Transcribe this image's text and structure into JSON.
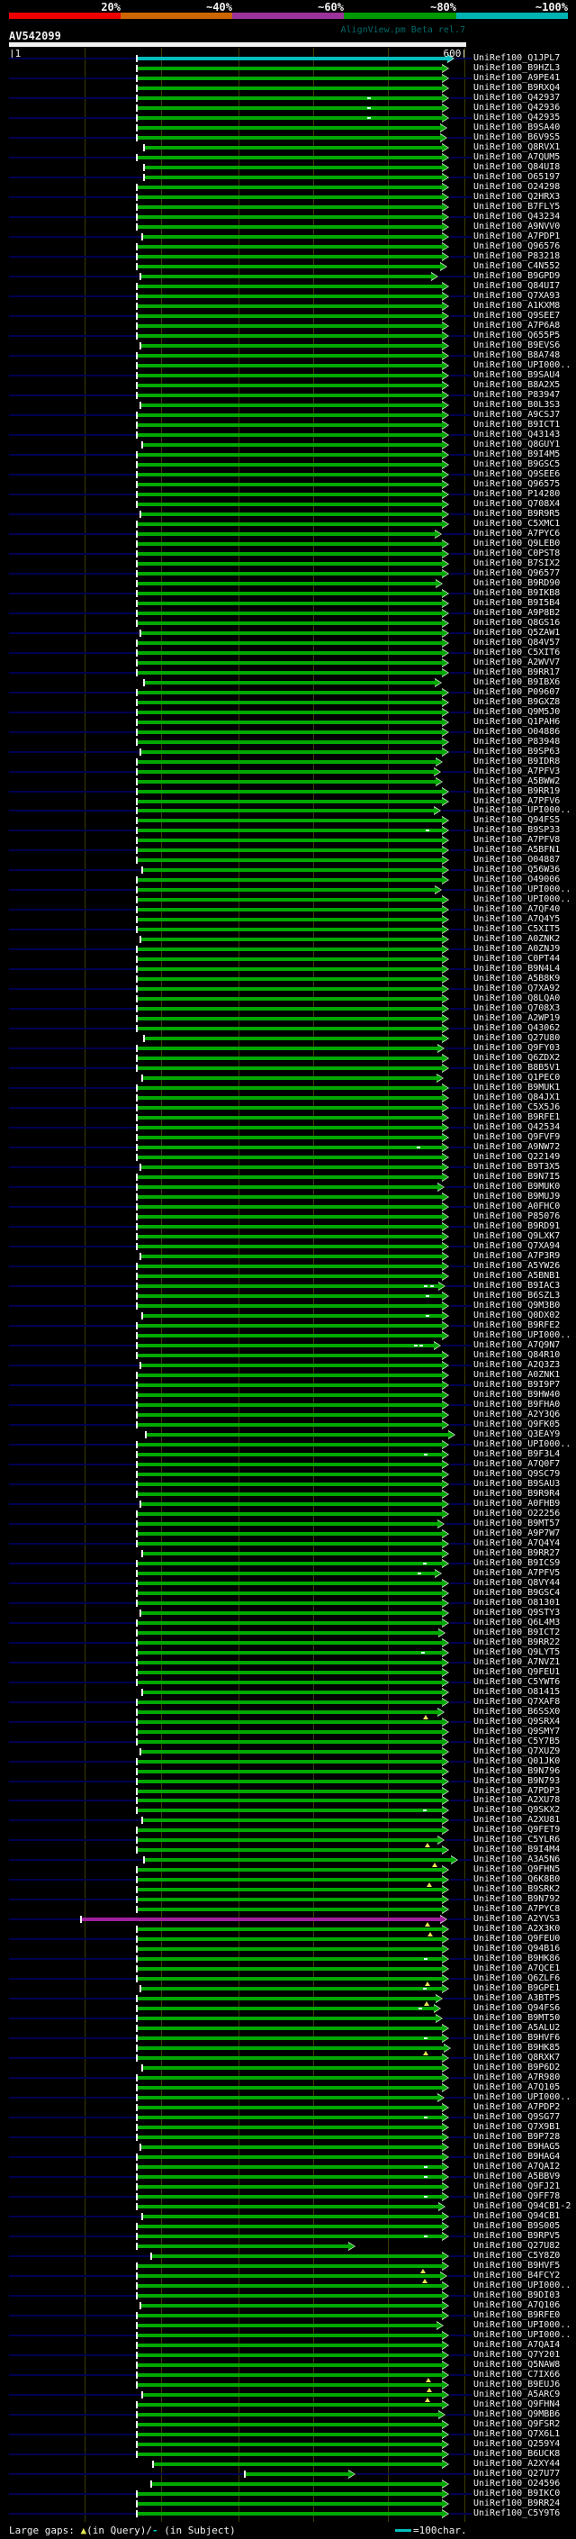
{
  "header": {
    "scale_labels": [
      "20%",
      "~40%",
      "~60%",
      "~80%",
      "~100%"
    ],
    "scale_colors": [
      "#ee0000",
      "#cc6600",
      "#993399",
      "#009900",
      "#00b3b3"
    ],
    "watermark": "AlignView.pm Beta rel.7",
    "query_name": "AV542099",
    "ruler_start_label": "|1",
    "ruler_end_label": "600|",
    "ruler_tick_x": [
      94,
      179,
      265,
      348,
      431,
      516
    ]
  },
  "footer": {
    "gaps_label": "Large gaps: ",
    "gap_query_symbol": "▲",
    "gap_query_text": "(in Query)/",
    "gap_subject_symbol": "- ",
    "gap_subject_text": "(in Subject)",
    "scale_legend": "=100char."
  },
  "colors": {
    "green": "#00a800",
    "cyan": "#00bcbc",
    "magenta": "#a020a0",
    "navy": "#000052",
    "grid": "#3c3c00",
    "gap_query": "#e6e655",
    "gap_subject": "#d8f4f4",
    "white": "#f2f2f2"
  },
  "defaults": {
    "color": "green",
    "start": 152,
    "end": 499
  },
  "rows": [
    {
      "label": "UniRef100_Q1JPL7",
      "color": "cyan",
      "end": 505
    },
    {
      "label": "UniRef100_B9HZL3"
    },
    {
      "label": "UniRef100_A9PE41"
    },
    {
      "label": "UniRef100_B9RXQ4"
    },
    {
      "label": "UniRef100_Q42937",
      "dash": [
        410
      ]
    },
    {
      "label": "UniRef100_Q42936",
      "dash": [
        410
      ]
    },
    {
      "label": "UniRef100_Q42935",
      "dash": [
        410
      ]
    },
    {
      "label": "UniRef100_B9SA40",
      "end": 497
    },
    {
      "label": "UniRef100_B6V9S5",
      "end": 497
    },
    {
      "label": "UniRef100_Q8RVX1",
      "start": 160
    },
    {
      "label": "UniRef100_A7QUM5"
    },
    {
      "label": "UniRef100_Q84UI8",
      "start": 160
    },
    {
      "label": "UniRef100_O65197",
      "start": 160
    },
    {
      "label": "UniRef100_O24298"
    },
    {
      "label": "UniRef100_Q2HRX3"
    },
    {
      "label": "UniRef100_B7FLY5"
    },
    {
      "label": "UniRef100_Q43234"
    },
    {
      "label": "UniRef100_A9NVV0"
    },
    {
      "label": "UniRef100_A7PDP1",
      "start": 158
    },
    {
      "label": "UniRef100_Q96576"
    },
    {
      "label": "UniRef100_P83218"
    },
    {
      "label": "UniRef100_C4N552",
      "end": 497
    },
    {
      "label": "UniRef100_B9GPD9",
      "start": 156,
      "end": 487
    },
    {
      "label": "UniRef100_Q84UI7"
    },
    {
      "label": "UniRef100_Q7XA93"
    },
    {
      "label": "UniRef100_A1KXM8"
    },
    {
      "label": "UniRef100_Q9SEE7"
    },
    {
      "label": "UniRef100_A7P6A8"
    },
    {
      "label": "UniRef100_Q655P5"
    },
    {
      "label": "UniRef100_B9EVS6",
      "start": 156
    },
    {
      "label": "UniRef100_B8A748"
    },
    {
      "label": "UniRef100_UPI000.."
    },
    {
      "label": "UniRef100_B9SAU4"
    },
    {
      "label": "UniRef100_B8A2X5"
    },
    {
      "label": "UniRef100_P83947"
    },
    {
      "label": "UniRef100_B0L3S3",
      "start": 156
    },
    {
      "label": "UniRef100_A9CSJ7"
    },
    {
      "label": "UniRef100_B9ICT1"
    },
    {
      "label": "UniRef100_Q43143"
    },
    {
      "label": "UniRef100_Q8GUY1",
      "start": 158
    },
    {
      "label": "UniRef100_B9I4M5"
    },
    {
      "label": "UniRef100_B9GSC5"
    },
    {
      "label": "UniRef100_Q9SEE6"
    },
    {
      "label": "UniRef100_Q96575"
    },
    {
      "label": "UniRef100_P14280"
    },
    {
      "label": "UniRef100_Q708X4"
    },
    {
      "label": "UniRef100_B9R9R5",
      "start": 156
    },
    {
      "label": "UniRef100_C5XMC1"
    },
    {
      "label": "UniRef100_A7PYC6",
      "end": 491
    },
    {
      "label": "UniRef100_Q9LEB0"
    },
    {
      "label": "UniRef100_C0PST8"
    },
    {
      "label": "UniRef100_B7SIX2"
    },
    {
      "label": "UniRef100_Q96577"
    },
    {
      "label": "UniRef100_B9RD90",
      "end": 492
    },
    {
      "label": "UniRef100_B9IKB8"
    },
    {
      "label": "UniRef100_B9I5B4"
    },
    {
      "label": "UniRef100_A9P8B2"
    },
    {
      "label": "UniRef100_Q8GS16"
    },
    {
      "label": "UniRef100_Q5ZAW1",
      "start": 156
    },
    {
      "label": "UniRef100_Q84V57"
    },
    {
      "label": "UniRef100_C5XIT6"
    },
    {
      "label": "UniRef100_A2WVV7"
    },
    {
      "label": "UniRef100_B9RR17"
    },
    {
      "label": "UniRef100_B9IBX6",
      "start": 160,
      "end": 491
    },
    {
      "label": "UniRef100_P09607"
    },
    {
      "label": "UniRef100_B9GXZ8"
    },
    {
      "label": "UniRef100_Q9M5J0"
    },
    {
      "label": "UniRef100_Q1PAH6"
    },
    {
      "label": "UniRef100_O04886"
    },
    {
      "label": "UniRef100_P83948"
    },
    {
      "label": "UniRef100_B9SP63",
      "start": 156
    },
    {
      "label": "UniRef100_B9IDR8",
      "end": 492
    },
    {
      "label": "UniRef100_A7PFV3",
      "end": 490
    },
    {
      "label": "UniRef100_A5BWW2",
      "end": 492
    },
    {
      "label": "UniRef100_B9RR19"
    },
    {
      "label": "UniRef100_A7PFV6"
    },
    {
      "label": "UniRef100_UPI000..",
      "end": 490
    },
    {
      "label": "UniRef100_Q94FS5"
    },
    {
      "label": "UniRef100_B9SP33",
      "dash": [
        475
      ]
    },
    {
      "label": "UniRef100_A7PFV8"
    },
    {
      "label": "UniRef100_A5BFN1"
    },
    {
      "label": "UniRef100_O04887"
    },
    {
      "label": "UniRef100_Q56W36",
      "start": 158
    },
    {
      "label": "UniRef100_O49006"
    },
    {
      "label": "UniRef100_UPI000..",
      "end": 491
    },
    {
      "label": "UniRef100_UPI000.."
    },
    {
      "label": "UniRef100_A7QF40"
    },
    {
      "label": "UniRef100_A7Q4Y5"
    },
    {
      "label": "UniRef100_C5XIT5"
    },
    {
      "label": "UniRef100_A0ZNK2",
      "start": 156
    },
    {
      "label": "UniRef100_A0ZNJ9"
    },
    {
      "label": "UniRef100_C0PT44"
    },
    {
      "label": "UniRef100_B9N4L4"
    },
    {
      "label": "UniRef100_A5B8K9"
    },
    {
      "label": "UniRef100_Q7XA92"
    },
    {
      "label": "UniRef100_Q8LQA0"
    },
    {
      "label": "UniRef100_Q708X3"
    },
    {
      "label": "UniRef100_A2WP19"
    },
    {
      "label": "UniRef100_Q43062"
    },
    {
      "label": "UniRef100_Q27U80",
      "start": 160
    },
    {
      "label": "UniRef100_Q9FY03",
      "end": 494
    },
    {
      "label": "UniRef100_Q6ZDX2"
    },
    {
      "label": "UniRef100_B8B5V1"
    },
    {
      "label": "UniRef100_Q1PEC0",
      "start": 158,
      "end": 493
    },
    {
      "label": "UniRef100_B9MUK1"
    },
    {
      "label": "UniRef100_Q84JX1"
    },
    {
      "label": "UniRef100_C5X5J6"
    },
    {
      "label": "UniRef100_B9RFE1"
    },
    {
      "label": "UniRef100_Q42534"
    },
    {
      "label": "UniRef100_Q9FVF9"
    },
    {
      "label": "UniRef100_A9NW72",
      "dash": [
        465
      ]
    },
    {
      "label": "UniRef100_Q22149"
    },
    {
      "label": "UniRef100_B9T3X5",
      "start": 156
    },
    {
      "label": "UniRef100_B9N7I5"
    },
    {
      "label": "UniRef100_B9MUK0",
      "end": 494
    },
    {
      "label": "UniRef100_B9MUJ9"
    },
    {
      "label": "UniRef100_A0FHC0"
    },
    {
      "label": "UniRef100_P85076"
    },
    {
      "label": "UniRef100_B9RD91"
    },
    {
      "label": "UniRef100_Q9LXK7"
    },
    {
      "label": "UniRef100_Q7XA94"
    },
    {
      "label": "UniRef100_A7P3R9",
      "start": 156
    },
    {
      "label": "UniRef100_A5YW26"
    },
    {
      "label": "UniRef100_A5BNB1"
    },
    {
      "label": "UniRef100_B9IAC3",
      "end": 495,
      "dash": [
        473,
        480
      ]
    },
    {
      "label": "UniRef100_B6SZL3",
      "dash": [
        475
      ]
    },
    {
      "label": "UniRef100_Q9M3B0"
    },
    {
      "label": "UniRef100_Q0DX02",
      "start": 158,
      "dash": [
        475
      ]
    },
    {
      "label": "UniRef100_B9RFE2"
    },
    {
      "label": "UniRef100_UPI000.."
    },
    {
      "label": "UniRef100_A7Q9N7",
      "end": 490,
      "dash": [
        462,
        468
      ]
    },
    {
      "label": "UniRef100_Q84R10"
    },
    {
      "label": "UniRef100_A2Q3Z3",
      "start": 156
    },
    {
      "label": "UniRef100_A0ZNK1"
    },
    {
      "label": "UniRef100_B9I9P7"
    },
    {
      "label": "UniRef100_B9HW40"
    },
    {
      "label": "UniRef100_B9FHA0"
    },
    {
      "label": "UniRef100_A2Y3Q6"
    },
    {
      "label": "UniRef100_Q9FK05"
    },
    {
      "label": "UniRef100_Q3EAY9",
      "start": 162,
      "end": 506
    },
    {
      "label": "UniRef100_UPI000.."
    },
    {
      "label": "UniRef100_B9F3L4",
      "dash": [
        473
      ]
    },
    {
      "label": "UniRef100_A7Q0F7"
    },
    {
      "label": "UniRef100_Q9SC79"
    },
    {
      "label": "UniRef100_B9SAU3"
    },
    {
      "label": "UniRef100_B9R9R4"
    },
    {
      "label": "UniRef100_A0FHB9",
      "start": 156
    },
    {
      "label": "UniRef100_O22256"
    },
    {
      "label": "UniRef100_B9MT57",
      "end": 494
    },
    {
      "label": "UniRef100_A9P7W7"
    },
    {
      "label": "UniRef100_A7Q4Y4"
    },
    {
      "label": "UniRef100_B9RR27",
      "start": 158
    },
    {
      "label": "UniRef100_B9ICS9",
      "dash": [
        472
      ]
    },
    {
      "label": "UniRef100_A7PFV5",
      "end": 491,
      "dash": [
        466
      ]
    },
    {
      "label": "UniRef100_Q8VY44"
    },
    {
      "label": "UniRef100_B9GSC4"
    },
    {
      "label": "UniRef100_O81301"
    },
    {
      "label": "UniRef100_Q9STY3",
      "start": 156
    },
    {
      "label": "UniRef100_Q6L4M3"
    },
    {
      "label": "UniRef100_B9ICT2",
      "end": 495
    },
    {
      "label": "UniRef100_B9RR22"
    },
    {
      "label": "UniRef100_Q9LYT5",
      "dash": [
        470
      ]
    },
    {
      "label": "UniRef100_A7NVZ1"
    },
    {
      "label": "UniRef100_Q9FEU1"
    },
    {
      "label": "UniRef100_C5YWT6"
    },
    {
      "label": "UniRef100_O81415",
      "start": 158
    },
    {
      "label": "UniRef100_Q7XAF8"
    },
    {
      "label": "UniRef100_B6SSX0",
      "end": 494,
      "tri": [
        473
      ]
    },
    {
      "label": "UniRef100_Q9SRX4"
    },
    {
      "label": "UniRef100_Q9SMY7"
    },
    {
      "label": "UniRef100_C5Y7B5"
    },
    {
      "label": "UniRef100_Q7XUZ9",
      "start": 156
    },
    {
      "label": "UniRef100_Q01JK0"
    },
    {
      "label": "UniRef100_B9N796"
    },
    {
      "label": "UniRef100_B9N793"
    },
    {
      "label": "UniRef100_A7PDP3"
    },
    {
      "label": "UniRef100_A2XU78"
    },
    {
      "label": "UniRef100_Q9SKX2",
      "dash": [
        472
      ]
    },
    {
      "label": "UniRef100_A2XU81",
      "start": 158
    },
    {
      "label": "UniRef100_Q9FET9"
    },
    {
      "label": "UniRef100_C5YLR6",
      "end": 494,
      "tri": [
        475
      ]
    },
    {
      "label": "UniRef100_B9I4M4"
    },
    {
      "label": "UniRef100_A3A5N6",
      "start": 160,
      "end": 509,
      "tri": [
        483
      ]
    },
    {
      "label": "UniRef100_Q9FHN5"
    },
    {
      "label": "UniRef100_Q6K8B0",
      "tri": [
        477
      ]
    },
    {
      "label": "UniRef100_B9SRK2"
    },
    {
      "label": "UniRef100_B9N792"
    },
    {
      "label": "UniRef100_A7PYC8"
    },
    {
      "label": "UniRef100_A2YVS3",
      "color": "magenta",
      "start": 90,
      "end": 497,
      "tri": [
        475
      ]
    },
    {
      "label": "UniRef100_A2X3K0",
      "tri": [
        478
      ]
    },
    {
      "label": "UniRef100_Q9FEU0"
    },
    {
      "label": "UniRef100_Q94B16"
    },
    {
      "label": "UniRef100_B9HK86",
      "dash": [
        473
      ]
    },
    {
      "label": "UniRef100_A7QCE1"
    },
    {
      "label": "UniRef100_Q6ZLF6",
      "tri": [
        475
      ]
    },
    {
      "label": "UniRef100_B9GPE1",
      "start": 156,
      "dash": [
        472
      ]
    },
    {
      "label": "UniRef100_A3BTP5",
      "end": 492,
      "tri": [
        474
      ]
    },
    {
      "label": "UniRef100_Q94FS6",
      "end": 490,
      "dash": [
        467
      ]
    },
    {
      "label": "UniRef100_B9MT50",
      "end": 492
    },
    {
      "label": "UniRef100_A5ALU2"
    },
    {
      "label": "UniRef100_B9HVF6",
      "dash": [
        473
      ]
    },
    {
      "label": "UniRef100_B9HK85",
      "end": 501,
      "tri": [
        473
      ]
    },
    {
      "label": "UniRef100_Q8RXK7"
    },
    {
      "label": "UniRef100_B9P6D2",
      "start": 158
    },
    {
      "label": "UniRef100_A7R980"
    },
    {
      "label": "UniRef100_A7Q105"
    },
    {
      "label": "UniRef100_UPI000..",
      "end": 494
    },
    {
      "label": "UniRef100_A7PDP2"
    },
    {
      "label": "UniRef100_Q9SG77",
      "dash": [
        473
      ]
    },
    {
      "label": "UniRef100_Q7X9B1"
    },
    {
      "label": "UniRef100_B9P728"
    },
    {
      "label": "UniRef100_B9HAG5",
      "start": 156
    },
    {
      "label": "UniRef100_B9HAG4"
    },
    {
      "label": "UniRef100_A7QAI2",
      "dash": [
        473
      ]
    },
    {
      "label": "UniRef100_A5BBV9",
      "dash": [
        473
      ]
    },
    {
      "label": "UniRef100_Q9FJ21"
    },
    {
      "label": "UniRef100_Q9FF78",
      "dash": [
        473
      ]
    },
    {
      "label": "UniRef100_Q94CB1-2",
      "end": 495
    },
    {
      "label": "UniRef100_Q94CB1",
      "start": 158
    },
    {
      "label": "UniRef100_B9S005"
    },
    {
      "label": "UniRef100_B9RPV5",
      "dash": [
        473
      ]
    },
    {
      "label": "UniRef100_Q27U82",
      "end": 395
    },
    {
      "label": "UniRef100_C5Y8Z0",
      "start": 168
    },
    {
      "label": "UniRef100_B9HVF5",
      "tri": [
        470
      ]
    },
    {
      "label": "UniRef100_B4FCY2",
      "end": 497,
      "tri": [
        472
      ]
    },
    {
      "label": "UniRef100_UPI000.."
    },
    {
      "label": "UniRef100_B9DI03"
    },
    {
      "label": "UniRef100_A7Q106",
      "start": 156
    },
    {
      "label": "UniRef100_B9RFE0"
    },
    {
      "label": "UniRef100_UPI000..",
      "end": 493
    },
    {
      "label": "UniRef100_UPI000.."
    },
    {
      "label": "UniRef100_A7QAI4"
    },
    {
      "label": "UniRef100_Q7Y201"
    },
    {
      "label": "UniRef100_Q5NAW8"
    },
    {
      "label": "UniRef100_C7IX66",
      "tri": [
        476
      ]
    },
    {
      "label": "UniRef100_B9EUJ6",
      "tri": [
        477
      ]
    },
    {
      "label": "UniRef100_A5ARC9",
      "start": 158,
      "tri": [
        475
      ]
    },
    {
      "label": "UniRef100_Q9FHN4"
    },
    {
      "label": "UniRef100_Q9MBB6",
      "end": 495
    },
    {
      "label": "UniRef100_Q9FSR2"
    },
    {
      "label": "UniRef100_Q7X6L1"
    },
    {
      "label": "UniRef100_Q259Y4"
    },
    {
      "label": "UniRef100_B6UCK8"
    },
    {
      "label": "UniRef100_A2XY44",
      "start": 170
    },
    {
      "label": "UniRef100_Q27U77",
      "start": 272,
      "end": 395
    },
    {
      "label": "UniRef100_O24596",
      "start": 168
    },
    {
      "label": "UniRef100_B9IKC0"
    },
    {
      "label": "UniRef100_B9RR24"
    },
    {
      "label": "UniRef100_C5Y9T6"
    }
  ]
}
